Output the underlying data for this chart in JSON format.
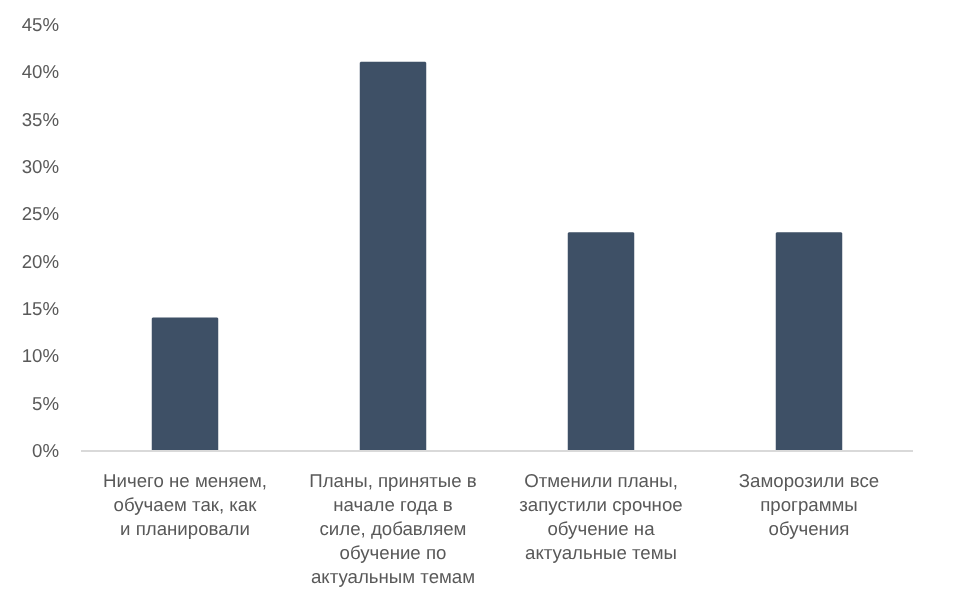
{
  "chart_data": {
    "type": "bar",
    "categories": [
      "Ничего не меняем, обучаем так, как и планировали",
      "Планы, принятые в начале года в силе, добавляем обучение по актуальным темам",
      "Отменили планы, запустили срочное обучение на актуальные темы",
      "Заморозили все программы обучения"
    ],
    "values": [
      14,
      41,
      23,
      23
    ],
    "color": "#3e5066",
    "ylim": [
      0,
      45
    ],
    "yticks": [
      {
        "value": 0,
        "label": "0%"
      },
      {
        "value": 5,
        "label": "5%"
      },
      {
        "value": 10,
        "label": "10%"
      },
      {
        "value": 15,
        "label": "15%"
      },
      {
        "value": 20,
        "label": "20%"
      },
      {
        "value": 25,
        "label": "25%"
      },
      {
        "value": 30,
        "label": "30%"
      },
      {
        "value": 35,
        "label": "35%"
      },
      {
        "value": 40,
        "label": "40%"
      },
      {
        "value": 45,
        "label": "45%"
      }
    ],
    "grid": false
  }
}
